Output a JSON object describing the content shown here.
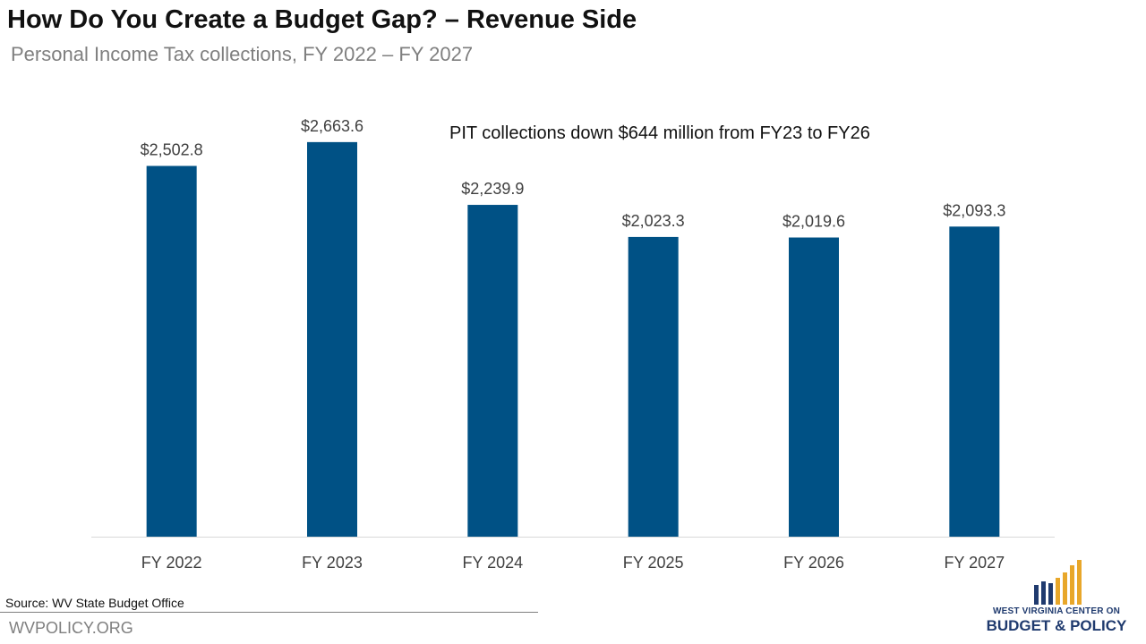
{
  "header": {
    "title": "How Do You Create a Budget Gap? – Revenue Side",
    "subtitle": "Personal Income Tax collections, FY 2022 – FY 2027"
  },
  "chart_data": {
    "type": "bar",
    "title": "",
    "xlabel": "",
    "ylabel": "",
    "ylim": [
      0,
      2800
    ],
    "categories": [
      "FY 2022",
      "FY 2023",
      "FY 2024",
      "FY 2025",
      "FY 2026",
      "FY 2027"
    ],
    "values": [
      2502.8,
      2663.6,
      2239.9,
      2023.3,
      2019.6,
      2093.3
    ],
    "data_labels": [
      "$2,502.8",
      "$2,663.6",
      "$2,239.9",
      "$2,023.3",
      "$2,019.6",
      "$2,093.3"
    ],
    "annotation": "PIT collections down $644 million from FY23 to FY26",
    "grid": false,
    "bar_color": "#005185",
    "axis_color": "#d9d9d9"
  },
  "footer": {
    "source": "Source: WV State Budget Office",
    "site": "WVPOLICY.ORG"
  },
  "logo": {
    "line1": "WEST VIRGINIA CENTER ON",
    "line2": "BUDGET & POLICY",
    "colors": {
      "navy": "#1f3a6e",
      "gold": "#e8a72a"
    }
  }
}
